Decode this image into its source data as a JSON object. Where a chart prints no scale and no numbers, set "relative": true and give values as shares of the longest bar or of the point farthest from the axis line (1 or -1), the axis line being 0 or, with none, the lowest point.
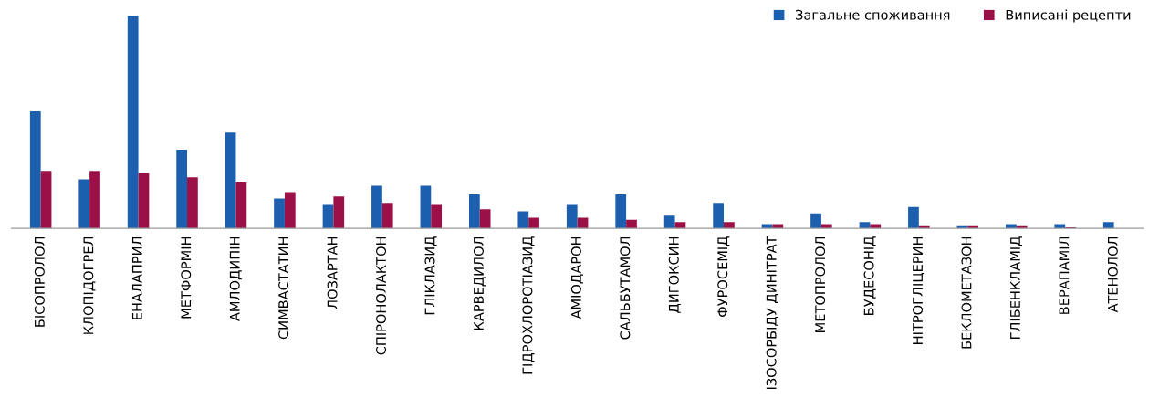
{
  "chart_data": {
    "type": "bar",
    "relative": true,
    "legend": "top right",
    "grid": false,
    "categories": [
      "БІСОПРОЛОЛ",
      "КЛОПІДОГРЕЛ",
      "ЕНАЛАПРИЛ",
      "МЕТФОРМІН",
      "АМЛОДИПІН",
      "СИМВАСТАТИН",
      "ЛОЗАРТАН",
      "СПІРОНОЛАКТОН",
      "ГЛІКЛАЗИД",
      "КАРВЕДИЛОЛ",
      "ГІДРОХЛОРОТІАЗИД",
      "АМІОДАРОН",
      "САЛЬБУТАМОЛ",
      "ДИГОКСИН",
      "ФУРОСЕМІД",
      "ІЗОСОРБІДУ ДИНІТРАТ",
      "МЕТОПРОЛОЛ",
      "БУДЕСОНІД",
      "НІТРОГЛІЦЕРИН",
      "БЕКЛОМЕТАЗОН",
      "ГЛІБЕНКЛАМІД",
      "ВЕРАПАМІЛ",
      "АТЕНОЛОЛ"
    ],
    "series": [
      {
        "name": "Загальне споживання",
        "color": "#1c5fae",
        "values": [
          0.55,
          0.23,
          1,
          0.37,
          0.45,
          0.14,
          0.11,
          0.2,
          0.2,
          0.16,
          0.08,
          0.11,
          0.16,
          0.06,
          0.12,
          0.02,
          0.07,
          0.03,
          0.1,
          0.01,
          0.02,
          0.02,
          0.03
        ]
      },
      {
        "name": "Виписані рецепти",
        "color": "#9b1046",
        "values": [
          0.27,
          0.27,
          0.26,
          0.24,
          0.22,
          0.17,
          0.15,
          0.12,
          0.11,
          0.09,
          0.05,
          0.05,
          0.04,
          0.03,
          0.03,
          0.02,
          0.02,
          0.02,
          0.01,
          0.01,
          0.01,
          0.005,
          0
        ]
      }
    ]
  }
}
